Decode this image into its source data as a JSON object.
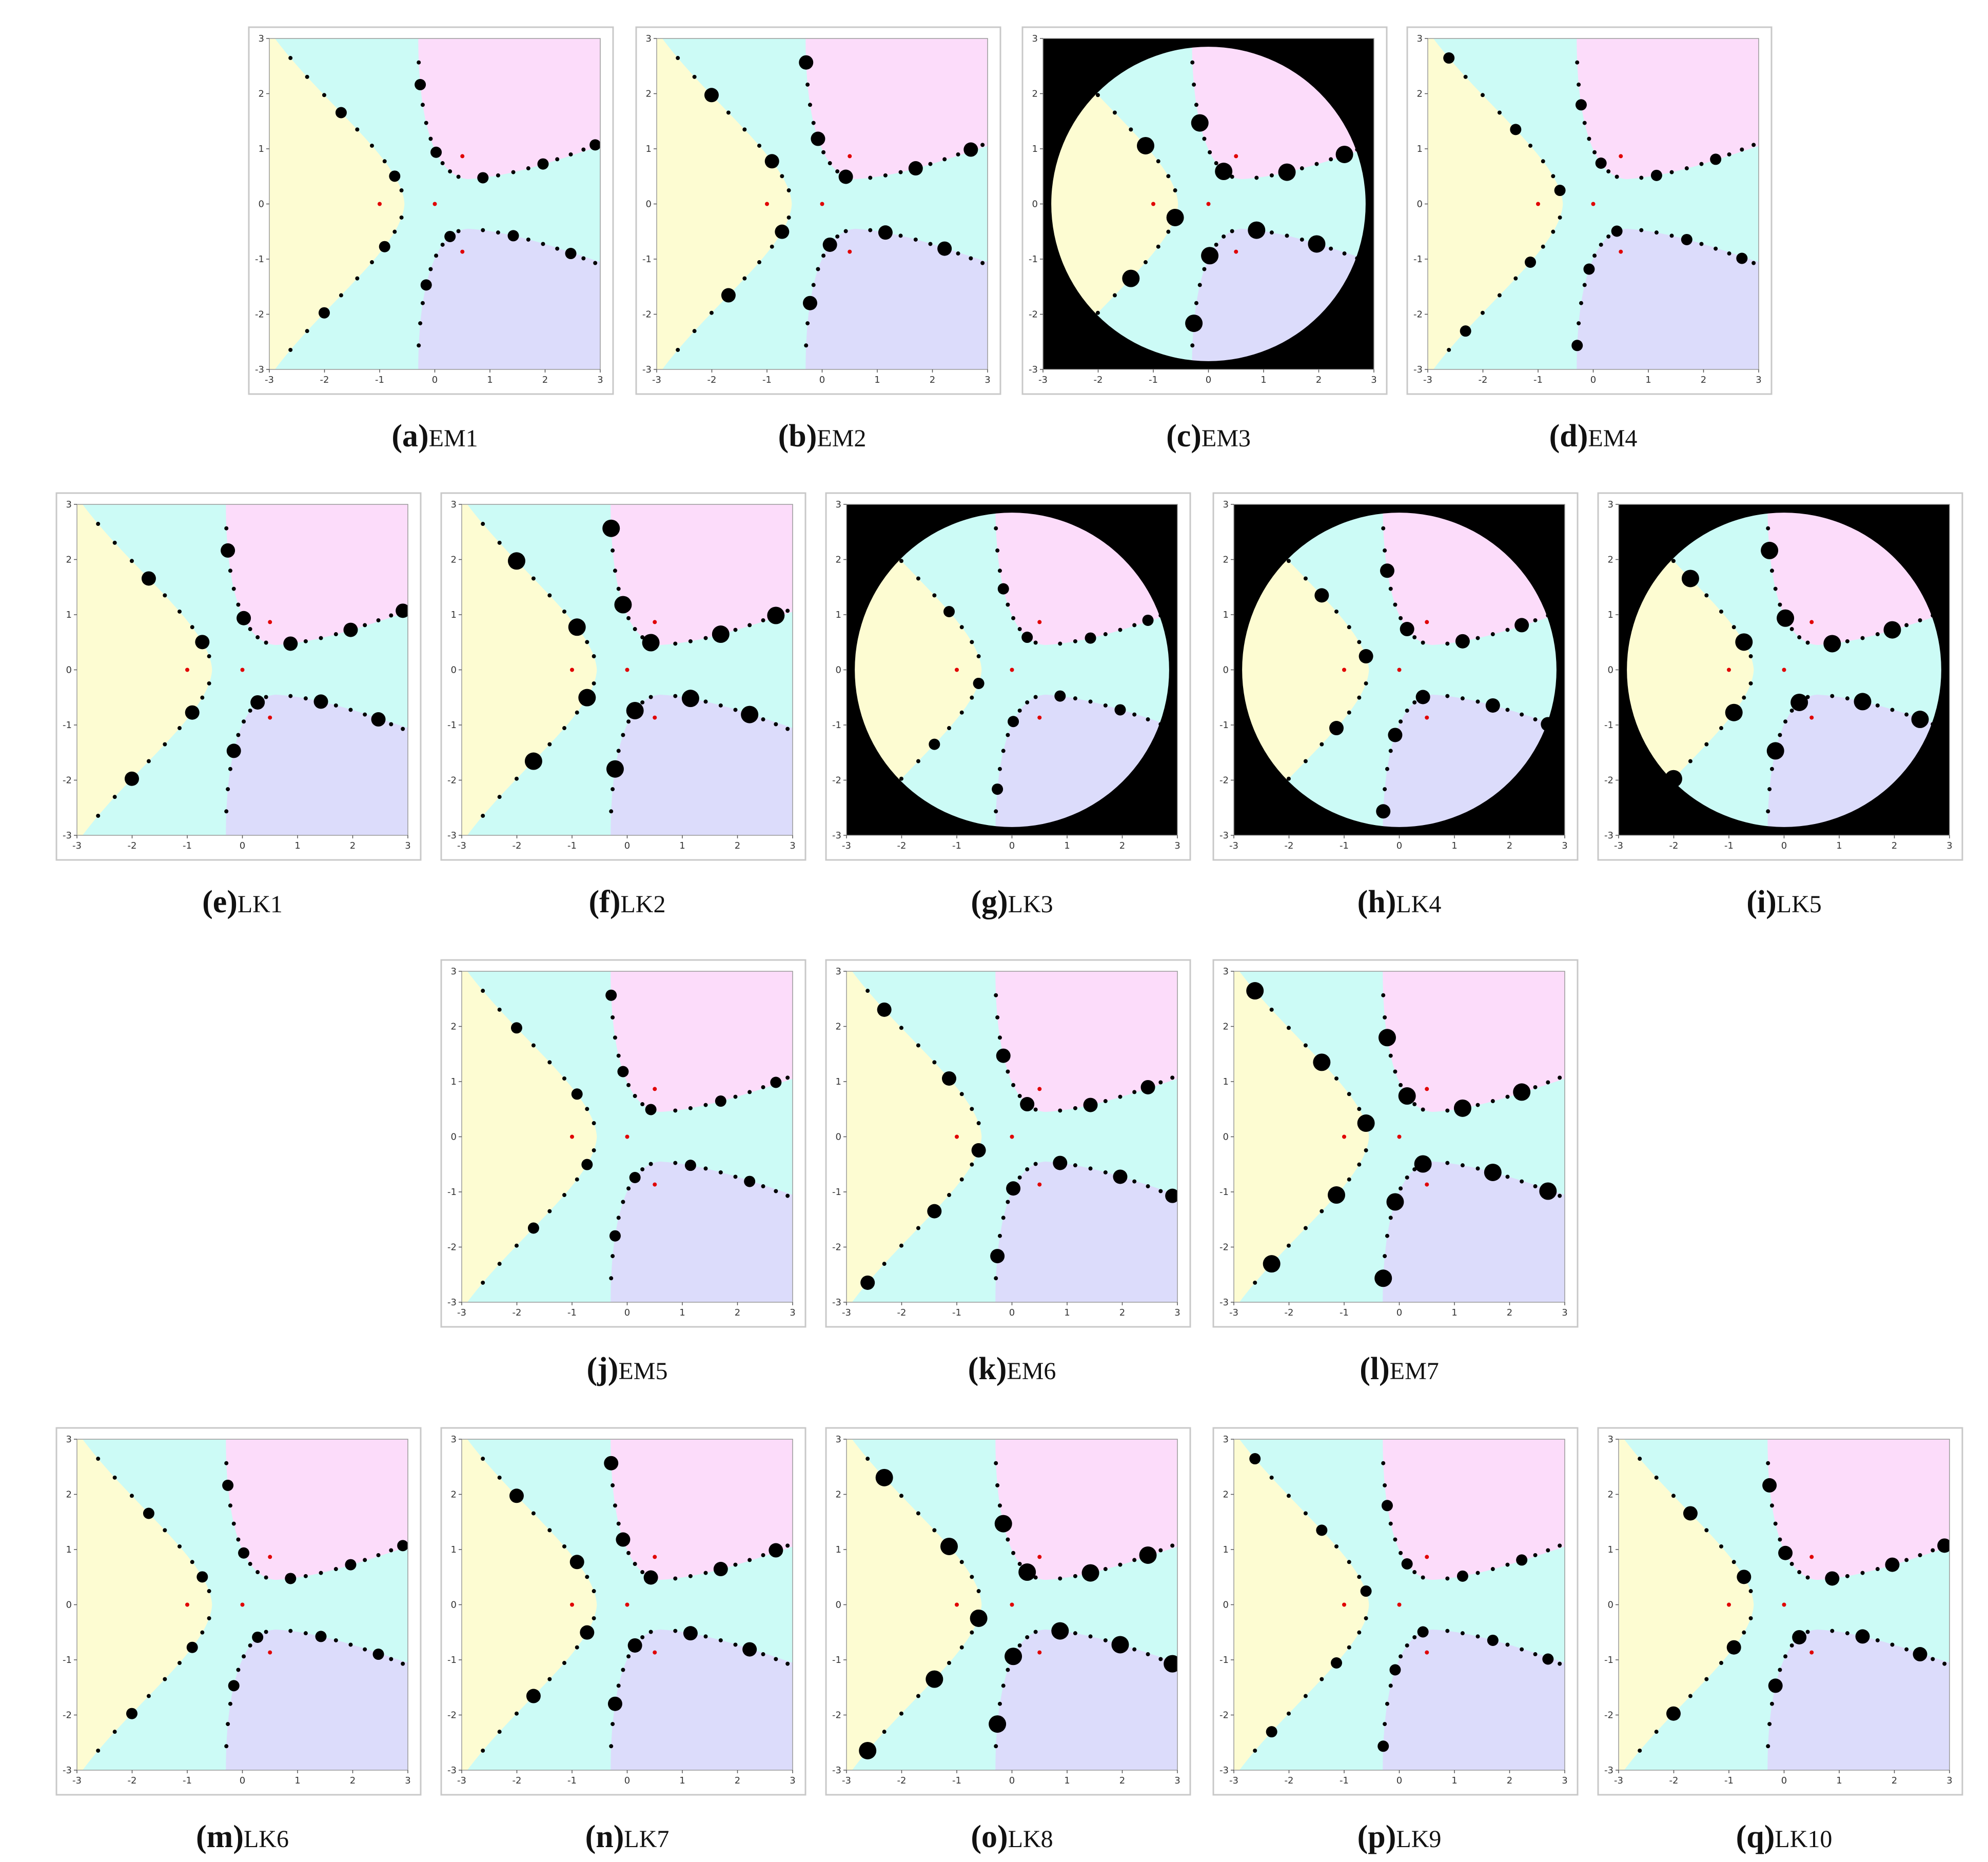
{
  "axis_ticks": [
    -3,
    -2,
    -1,
    0,
    1,
    2,
    3
  ],
  "panels": [
    {
      "tag": "(a)",
      "method": "EM1"
    },
    {
      "tag": "(b)",
      "method": "EM2"
    },
    {
      "tag": "(c)",
      "method": "EM3"
    },
    {
      "tag": "(d)",
      "method": "EM4"
    },
    {
      "tag": "(e)",
      "method": "LK1"
    },
    {
      "tag": "(f)",
      "method": "LK2"
    },
    {
      "tag": "(g)",
      "method": "LK3"
    },
    {
      "tag": "(h)",
      "method": "LK4"
    },
    {
      "tag": "(i)",
      "method": "LK5"
    },
    {
      "tag": "(j)",
      "method": "EM5"
    },
    {
      "tag": "(k)",
      "method": "EM6"
    },
    {
      "tag": "(l)",
      "method": "EM7"
    },
    {
      "tag": "(m)",
      "method": "LK6"
    },
    {
      "tag": "(n)",
      "method": "LK7"
    },
    {
      "tag": "(o)",
      "method": "LK8"
    },
    {
      "tag": "(p)",
      "method": "LK9"
    },
    {
      "tag": "(q)",
      "method": "LK10"
    }
  ]
}
